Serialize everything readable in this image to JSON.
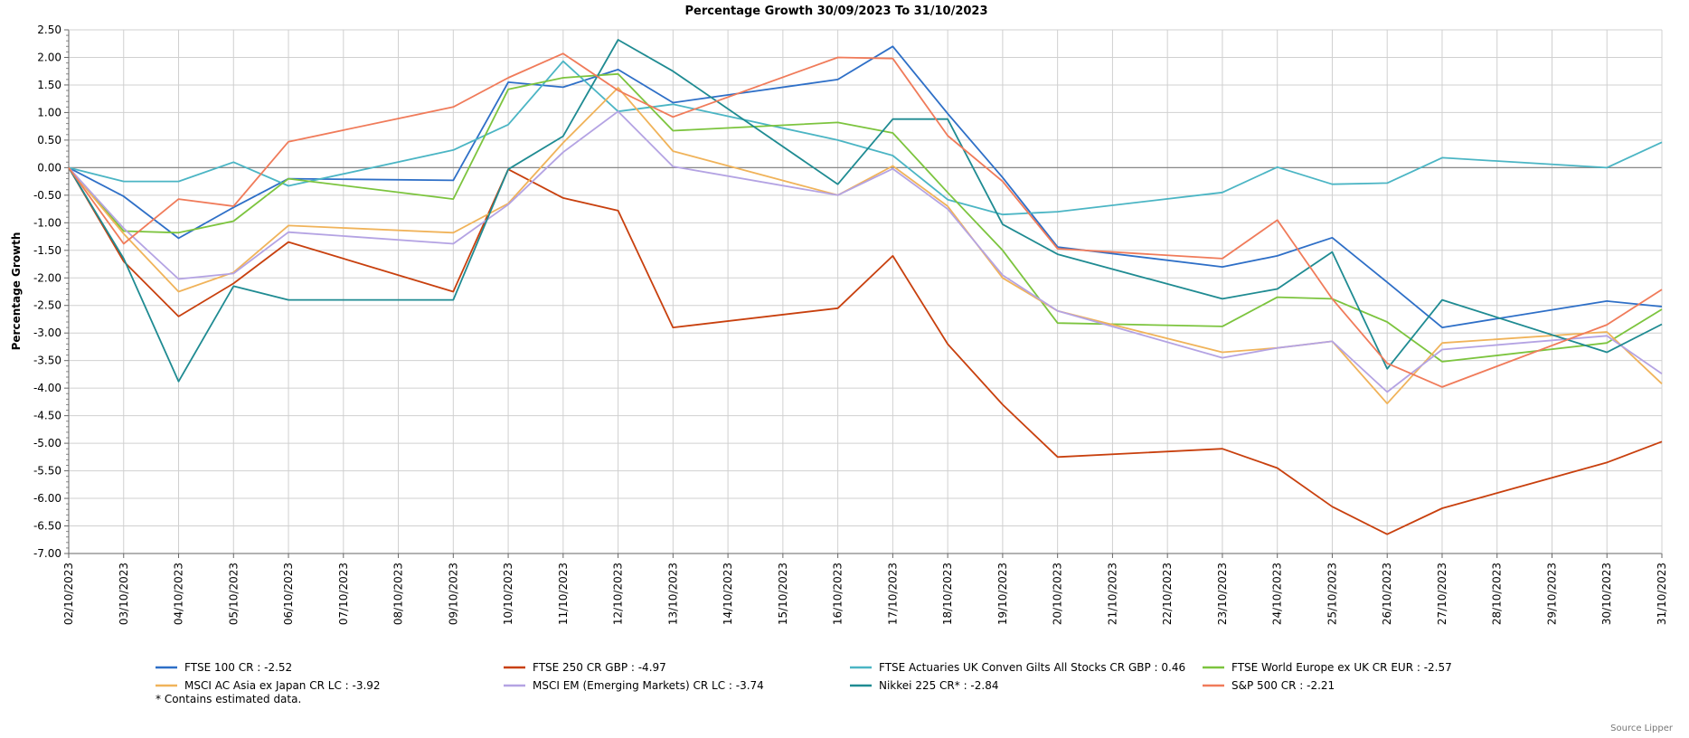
{
  "chart_data": {
    "type": "line",
    "title": "Percentage Growth 30/09/2023 To 31/10/2023",
    "ylabel": "Percentage Growth",
    "xlabel": "",
    "ylim": [
      -7.0,
      2.5
    ],
    "ytick_step": 0.5,
    "yticks": [
      "2.50",
      "2.00",
      "1.50",
      "1.00",
      "0.50",
      "0.00",
      "-0.50",
      "-1.00",
      "-1.50",
      "-2.00",
      "-2.50",
      "-3.00",
      "-3.50",
      "-4.00",
      "-4.50",
      "-5.00",
      "-5.50",
      "-6.00",
      "-6.50",
      "-7.00"
    ],
    "grid": true,
    "legend_position": "bottom",
    "x": [
      "02/10/2023",
      "03/10/2023",
      "04/10/2023",
      "05/10/2023",
      "06/10/2023",
      "07/10/2023",
      "08/10/2023",
      "09/10/2023",
      "10/10/2023",
      "11/10/2023",
      "12/10/2023",
      "13/10/2023",
      "14/10/2023",
      "15/10/2023",
      "16/10/2023",
      "17/10/2023",
      "18/10/2023",
      "19/10/2023",
      "20/10/2023",
      "21/10/2023",
      "22/10/2023",
      "23/10/2023",
      "24/10/2023",
      "25/10/2023",
      "26/10/2023",
      "27/10/2023",
      "28/10/2023",
      "29/10/2023",
      "30/10/2023",
      "31/10/2023"
    ],
    "series": [
      {
        "name": "FTSE 100 CR : -2.52",
        "color": "#2e6fc7",
        "points": [
          [
            0,
            0.0
          ],
          [
            1,
            -0.52
          ],
          [
            2,
            -1.28
          ],
          [
            3,
            -0.72
          ],
          [
            4,
            -0.2
          ],
          [
            7,
            -0.23
          ],
          [
            8,
            1.55
          ],
          [
            9,
            1.46
          ],
          [
            10,
            1.78
          ],
          [
            11,
            1.18
          ],
          [
            14,
            1.6
          ],
          [
            15,
            2.2
          ],
          [
            16,
            0.98
          ],
          [
            17,
            -0.18
          ],
          [
            18,
            -1.44
          ],
          [
            21,
            -1.8
          ],
          [
            22,
            -1.6
          ],
          [
            23,
            -1.27
          ],
          [
            24,
            -2.08
          ],
          [
            25,
            -2.9
          ],
          [
            28,
            -2.42
          ],
          [
            29,
            -2.52
          ]
        ]
      },
      {
        "name": "FTSE 250 CR GBP : -4.97",
        "color": "#c8400e",
        "points": [
          [
            0,
            0.0
          ],
          [
            1,
            -1.7
          ],
          [
            2,
            -2.7
          ],
          [
            3,
            -2.1
          ],
          [
            4,
            -1.35
          ],
          [
            7,
            -2.25
          ],
          [
            8,
            -0.03
          ],
          [
            9,
            -0.55
          ],
          [
            10,
            -0.78
          ],
          [
            11,
            -2.9
          ],
          [
            14,
            -2.55
          ],
          [
            15,
            -1.6
          ],
          [
            16,
            -3.2
          ],
          [
            17,
            -4.3
          ],
          [
            18,
            -5.25
          ],
          [
            21,
            -5.1
          ],
          [
            22,
            -5.45
          ],
          [
            23,
            -6.15
          ],
          [
            24,
            -6.65
          ],
          [
            25,
            -6.18
          ],
          [
            28,
            -5.35
          ],
          [
            29,
            -4.97
          ]
        ]
      },
      {
        "name": "FTSE Actuaries UK Conven Gilts All Stocks CR GBP : 0.46",
        "color": "#4bb5c4",
        "points": [
          [
            0,
            0.0
          ],
          [
            1,
            -0.25
          ],
          [
            2,
            -0.25
          ],
          [
            3,
            0.1
          ],
          [
            4,
            -0.33
          ],
          [
            7,
            0.32
          ],
          [
            8,
            0.78
          ],
          [
            9,
            1.93
          ],
          [
            10,
            1.02
          ],
          [
            11,
            1.15
          ],
          [
            14,
            0.5
          ],
          [
            15,
            0.22
          ],
          [
            16,
            -0.58
          ],
          [
            17,
            -0.85
          ],
          [
            18,
            -0.8
          ],
          [
            21,
            -0.45
          ],
          [
            22,
            0.01
          ],
          [
            23,
            -0.3
          ],
          [
            24,
            -0.28
          ],
          [
            25,
            0.18
          ],
          [
            28,
            0.0
          ],
          [
            29,
            0.46
          ]
        ]
      },
      {
        "name": "FTSE World Europe ex UK CR EUR : -2.57",
        "color": "#7cc43e",
        "points": [
          [
            0,
            0.0
          ],
          [
            1,
            -1.15
          ],
          [
            2,
            -1.18
          ],
          [
            3,
            -0.97
          ],
          [
            4,
            -0.2
          ],
          [
            7,
            -0.57
          ],
          [
            8,
            1.42
          ],
          [
            9,
            1.63
          ],
          [
            10,
            1.7
          ],
          [
            11,
            0.67
          ],
          [
            14,
            0.82
          ],
          [
            15,
            0.63
          ],
          [
            16,
            -0.45
          ],
          [
            17,
            -1.5
          ],
          [
            18,
            -2.82
          ],
          [
            21,
            -2.88
          ],
          [
            22,
            -2.35
          ],
          [
            23,
            -2.38
          ],
          [
            24,
            -2.8
          ],
          [
            25,
            -3.52
          ],
          [
            28,
            -3.18
          ],
          [
            29,
            -2.57
          ]
        ]
      },
      {
        "name": "MSCI AC Asia ex Japan CR LC : -3.92",
        "color": "#f0b35a",
        "points": [
          [
            0,
            0.0
          ],
          [
            1,
            -1.2
          ],
          [
            2,
            -2.25
          ],
          [
            3,
            -1.9
          ],
          [
            4,
            -1.05
          ],
          [
            7,
            -1.18
          ],
          [
            8,
            -0.65
          ],
          [
            9,
            0.45
          ],
          [
            10,
            1.45
          ],
          [
            11,
            0.3
          ],
          [
            14,
            -0.5
          ],
          [
            15,
            0.03
          ],
          [
            16,
            -0.7
          ],
          [
            17,
            -2.0
          ],
          [
            18,
            -2.6
          ],
          [
            21,
            -3.35
          ],
          [
            22,
            -3.27
          ],
          [
            23,
            -3.15
          ],
          [
            24,
            -4.28
          ],
          [
            25,
            -3.18
          ],
          [
            28,
            -2.98
          ],
          [
            29,
            -3.92
          ]
        ]
      },
      {
        "name": "MSCI EM (Emerging Markets) CR LC : -3.74",
        "color": "#b4a3e3",
        "points": [
          [
            0,
            0.0
          ],
          [
            1,
            -1.1
          ],
          [
            2,
            -2.02
          ],
          [
            3,
            -1.92
          ],
          [
            4,
            -1.17
          ],
          [
            7,
            -1.38
          ],
          [
            8,
            -0.67
          ],
          [
            9,
            0.28
          ],
          [
            10,
            1.02
          ],
          [
            11,
            0.02
          ],
          [
            14,
            -0.5
          ],
          [
            15,
            -0.02
          ],
          [
            16,
            -0.75
          ],
          [
            17,
            -1.95
          ],
          [
            18,
            -2.6
          ],
          [
            21,
            -3.45
          ],
          [
            22,
            -3.27
          ],
          [
            23,
            -3.15
          ],
          [
            24,
            -4.07
          ],
          [
            25,
            -3.3
          ],
          [
            28,
            -3.05
          ],
          [
            29,
            -3.74
          ]
        ]
      },
      {
        "name": "Nikkei 225 CR* : -2.84",
        "color": "#1f8b92",
        "points": [
          [
            0,
            0.0
          ],
          [
            1,
            -1.65
          ],
          [
            2,
            -3.88
          ],
          [
            3,
            -2.15
          ],
          [
            4,
            -2.4
          ],
          [
            7,
            -2.4
          ],
          [
            8,
            -0.03
          ],
          [
            9,
            0.57
          ],
          [
            10,
            2.32
          ],
          [
            11,
            1.75
          ],
          [
            14,
            -0.3
          ],
          [
            15,
            0.88
          ],
          [
            16,
            0.88
          ],
          [
            17,
            -1.03
          ],
          [
            18,
            -1.57
          ],
          [
            21,
            -2.38
          ],
          [
            22,
            -2.2
          ],
          [
            23,
            -1.53
          ],
          [
            24,
            -3.65
          ],
          [
            25,
            -2.4
          ],
          [
            28,
            -3.35
          ],
          [
            29,
            -2.84
          ]
        ]
      },
      {
        "name": "S&P 500 CR : -2.21",
        "color": "#f07b5a",
        "points": [
          [
            0,
            0.0
          ],
          [
            1,
            -1.38
          ],
          [
            2,
            -0.57
          ],
          [
            3,
            -0.7
          ],
          [
            4,
            0.47
          ],
          [
            7,
            1.1
          ],
          [
            8,
            1.63
          ],
          [
            9,
            2.07
          ],
          [
            10,
            1.4
          ],
          [
            11,
            0.92
          ],
          [
            14,
            2.0
          ],
          [
            15,
            1.98
          ],
          [
            16,
            0.58
          ],
          [
            17,
            -0.25
          ],
          [
            18,
            -1.47
          ],
          [
            21,
            -1.65
          ],
          [
            22,
            -0.95
          ],
          [
            23,
            -2.38
          ],
          [
            24,
            -3.55
          ],
          [
            25,
            -3.98
          ],
          [
            28,
            -2.85
          ],
          [
            29,
            -2.21
          ]
        ]
      }
    ],
    "footnote": "*  Contains estimated data.",
    "source": "Source Lipper"
  }
}
